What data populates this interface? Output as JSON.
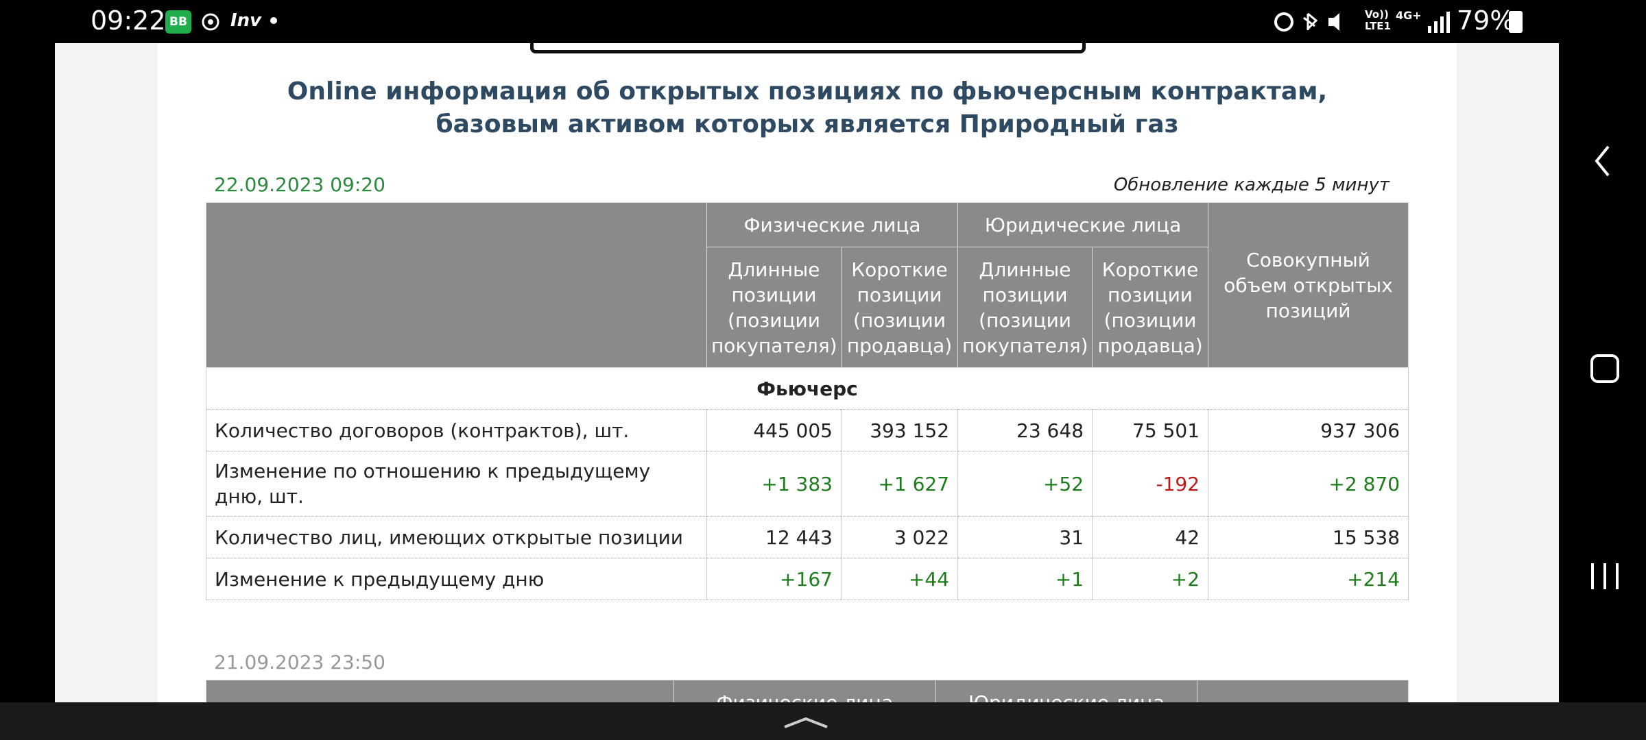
{
  "status_bar": {
    "time": "09:22",
    "app_badge": "BB",
    "app_label": "Inv",
    "volte": "Vo))",
    "lte": "LTE1",
    "network": "4G+",
    "battery": "79%"
  },
  "page": {
    "title_line1": "Online информация об открытых позициях по фьючерсным контрактам,",
    "title_line2": "базовым активом которых является Природный газ"
  },
  "table": {
    "date": "22.09.2023 09:20",
    "update_note": "Обновление каждые 5 минут",
    "groups": [
      "Физические лица",
      "Юридические лица"
    ],
    "columns": [
      "Длинные позиции (позиции покупателя)",
      "Короткие позиции (позиции продавца)",
      "Длинные позиции (позиции покупателя)",
      "Короткие позиции (позиции продавца)"
    ],
    "total_header": "Совокупный объем открытых позиций",
    "section": "Фьючерс",
    "rows": [
      {
        "label": "Количество договоров (контрактов), шт.",
        "values": [
          "445 005",
          "393 152",
          "23 648",
          "75 501",
          "937 306"
        ]
      },
      {
        "label": "Изменение по отношению к предыдущему дню, шт.",
        "values": [
          "+1 383",
          "+1 627",
          "+52",
          "-192",
          "+2 870"
        ]
      },
      {
        "label": "Количество лиц, имеющих открытые позиции",
        "values": [
          "12 443",
          "3 022",
          "31",
          "42",
          "15 538"
        ]
      },
      {
        "label": "Изменение к предыдущему дню",
        "values": [
          "+167",
          "+44",
          "+1",
          "+2",
          "+214"
        ]
      }
    ]
  },
  "next_table": {
    "date": "21.09.2023 23:50",
    "groups": [
      "Физические лица",
      "Юридические лица"
    ]
  }
}
